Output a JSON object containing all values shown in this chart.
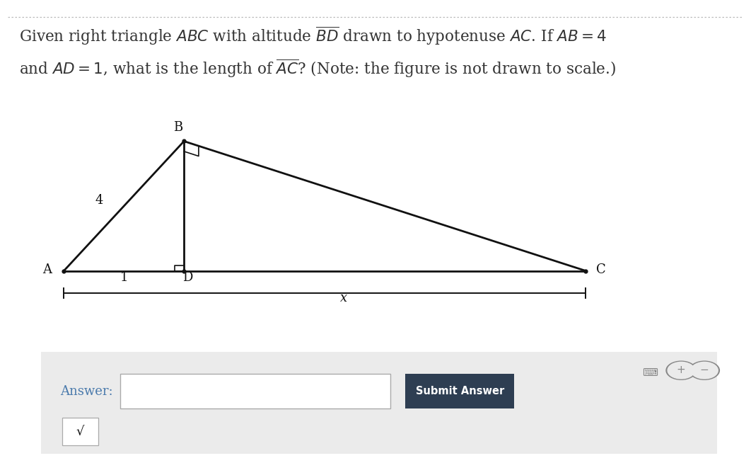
{
  "page_bg": "#ffffff",
  "panel_bg": "#ebebeb",
  "title_color": "#333333",
  "line_color": "#111111",
  "text_color": "#111111",
  "label_color": "#4a6fa5",
  "dashed_color": "#bbbbbb",
  "submit_bg": "#2e3e52",
  "A": [
    0.085,
    0.415
  ],
  "D": [
    0.245,
    0.415
  ],
  "C": [
    0.78,
    0.415
  ],
  "B": [
    0.245,
    0.695
  ],
  "label_A": "A",
  "label_B": "B",
  "label_C": "C",
  "label_D": "D",
  "label_4": "4",
  "label_1": "1",
  "label_x": "x",
  "answer_label": "Answer:",
  "submit_text": "Submit Answer",
  "sqrt_char": "√"
}
